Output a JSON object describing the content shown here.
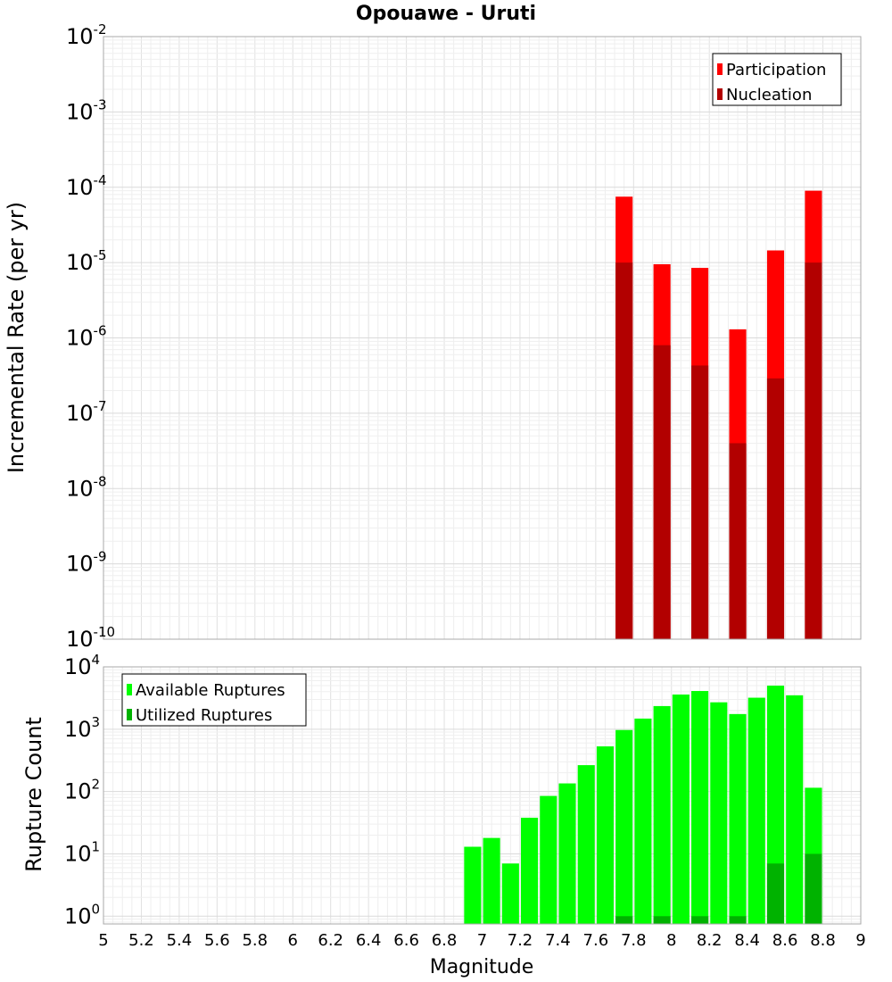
{
  "chart_data": [
    {
      "type": "bar",
      "title": "Opouawe - Uruti",
      "xlabel": "",
      "ylabel": "Incremental Rate (per yr)",
      "yscale": "log",
      "xlim": [
        5,
        9
      ],
      "ylim": [
        1e-10,
        0.01
      ],
      "y_ticks": [
        {
          "base": "10",
          "exp": "-10"
        },
        {
          "base": "10",
          "exp": "-9"
        },
        {
          "base": "10",
          "exp": "-8"
        },
        {
          "base": "10",
          "exp": "-7"
        },
        {
          "base": "10",
          "exp": "-6"
        },
        {
          "base": "10",
          "exp": "-5"
        },
        {
          "base": "10",
          "exp": "-4"
        },
        {
          "base": "10",
          "exp": "-3"
        },
        {
          "base": "10",
          "exp": "-2"
        }
      ],
      "grid": true,
      "legend_position": "top-right",
      "bar_width": 0.09,
      "series": [
        {
          "name": "Participation",
          "color": "#ff0000",
          "x": [
            7.75,
            7.95,
            8.15,
            8.35,
            8.55,
            8.75
          ],
          "values": [
            7.5e-05,
            9.5e-06,
            8.5e-06,
            1.3e-06,
            1.45e-05,
            9e-05
          ]
        },
        {
          "name": "Nucleation",
          "color": "#b20000",
          "x": [
            7.75,
            7.95,
            8.15,
            8.35,
            8.55,
            8.75
          ],
          "values": [
            1e-05,
            8e-07,
            4.3e-07,
            4e-08,
            2.9e-07,
            1e-05
          ]
        }
      ]
    },
    {
      "type": "bar",
      "title": "",
      "xlabel": "Magnitude",
      "ylabel": "Rupture Count",
      "yscale": "log",
      "xlim": [
        5,
        9
      ],
      "ylim": [
        0.75,
        10000
      ],
      "y_ticks": [
        {
          "value": 1,
          "base": "10",
          "exp": "0"
        },
        {
          "value": 10,
          "base": "10",
          "exp": "1"
        },
        {
          "value": 100,
          "base": "10",
          "exp": "2"
        },
        {
          "value": 1000,
          "base": "10",
          "exp": "3"
        },
        {
          "value": 10000,
          "base": "10",
          "exp": "4"
        }
      ],
      "x_ticks": [
        "5",
        "5.2",
        "5.4",
        "5.6",
        "5.8",
        "6",
        "6.2",
        "6.4",
        "6.6",
        "6.8",
        "7",
        "7.2",
        "7.4",
        "7.6",
        "7.8",
        "8",
        "8.2",
        "8.4",
        "8.6",
        "8.8",
        "9"
      ],
      "grid": true,
      "legend_position": "top-left",
      "bar_width": 0.09,
      "series": [
        {
          "name": "Available Ruptures",
          "color": "#00ff00",
          "x": [
            6.95,
            7.05,
            7.15,
            7.25,
            7.35,
            7.45,
            7.55,
            7.65,
            7.75,
            7.85,
            7.95,
            8.05,
            8.15,
            8.25,
            8.35,
            8.45,
            8.55,
            8.65,
            8.75
          ],
          "values": [
            13,
            18,
            7,
            38,
            85,
            135,
            265,
            530,
            970,
            1480,
            2350,
            3600,
            4100,
            2700,
            1750,
            3200,
            5000,
            3500,
            115
          ]
        },
        {
          "name": "Utilized Ruptures",
          "color": "#00b200",
          "x": [
            7.75,
            7.95,
            8.15,
            8.35,
            8.55,
            8.75
          ],
          "values": [
            1,
            1,
            1,
            1,
            7,
            10
          ]
        }
      ]
    }
  ]
}
